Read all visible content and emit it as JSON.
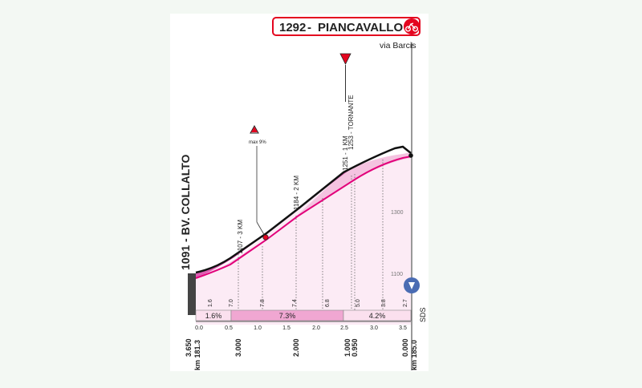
{
  "title": {
    "altitude": "1292",
    "name": "PIANCAVALLO",
    "separator": " - ",
    "subtitle": "via Barcis"
  },
  "start_label": "1091 - BV. COLLALTO",
  "km_markers": [
    {
      "text": "1107 - 3 KM"
    },
    {
      "text": "1184 - 2 KM"
    },
    {
      "text": "1251 - 1 KM"
    },
    {
      "text": "1253 - TORNANTE"
    }
  ],
  "max_grade_label": "max 9%",
  "gradient_bar": [
    "1.6%",
    "7.3%",
    "4.2%"
  ],
  "segment_grades": [
    "1.6",
    "7.0",
    "7.8",
    "7.4",
    "6.8",
    "5.0",
    "3.8",
    "2.7"
  ],
  "axis_ticks": [
    "0.0",
    "0.5",
    "1.0",
    "1.5",
    "2.0",
    "2.5",
    "3.0",
    "3.5"
  ],
  "bottom_distances": {
    "start": [
      "3.650",
      "km 181.3"
    ],
    "km3": "3.000",
    "km2": "2.000",
    "km1": [
      "1.000",
      "0.950"
    ],
    "finish": [
      "0.000",
      "km 185.0"
    ]
  },
  "elevation_ticks": [
    "1300",
    "1100"
  ],
  "sds_label": "SDS",
  "colors": {
    "accent": "#e2007a",
    "accent_light": "#f5c7e4",
    "accent_pale": "#fbe6f3",
    "red": "#e4051f"
  },
  "chart_data": {
    "type": "area",
    "x_unit": "km",
    "x": [
      0.0,
      0.5,
      1.0,
      1.5,
      2.0,
      2.5,
      3.0,
      3.5,
      3.65
    ],
    "grades": [
      1.6,
      7.0,
      7.8,
      7.4,
      6.8,
      5.0,
      3.8,
      2.7
    ],
    "elevation": [
      1091,
      1099,
      1134,
      1173,
      1210,
      1244,
      1269,
      1288,
      1292
    ],
    "ylabel_ticks": [
      1100,
      1300
    ]
  }
}
